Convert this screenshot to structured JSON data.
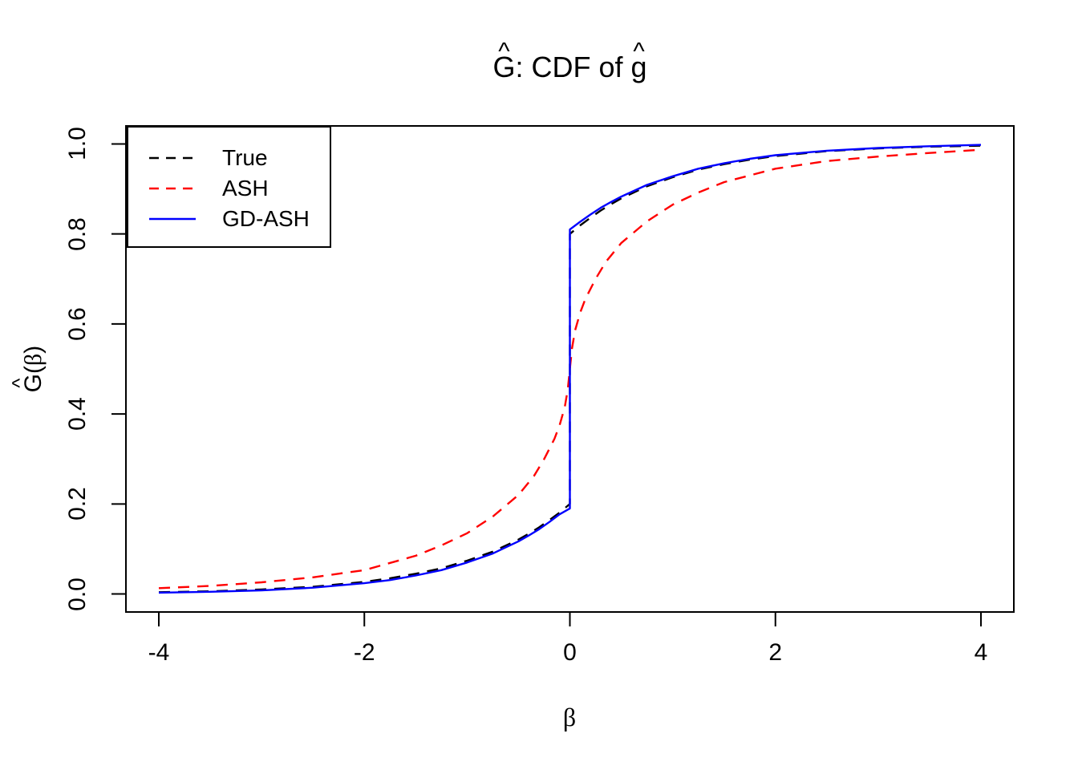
{
  "title": {
    "text": "Ĝ: CDF of ĝ",
    "hat": "^",
    "part_g_upper": "G",
    "part_middle": ": CDF of ",
    "part_g_lower": "g"
  },
  "axes": {
    "x_label": "β",
    "y_label_text": "Ĝ(β)",
    "y_label_letter": "G",
    "y_label_hat": "^",
    "y_label_open": "(",
    "y_label_beta": "β",
    "y_label_close": ")"
  },
  "legend": {
    "position": "topleft",
    "items": [
      {
        "label": "True",
        "color": "#000000",
        "style": "dashed"
      },
      {
        "label": "ASH",
        "color": "#ff0000",
        "style": "dashed"
      },
      {
        "label": "GD-ASH",
        "color": "#0000ff",
        "style": "solid"
      }
    ]
  },
  "chart_data": {
    "type": "line",
    "title": "Ĝ: CDF of ĝ",
    "xlabel": "β",
    "ylabel": "Ĝ(β)",
    "xlim": [
      -4,
      4
    ],
    "ylim": [
      0,
      1
    ],
    "grid": false,
    "legend_position": "topleft",
    "x_ticks": {
      "values": [
        -4,
        -2,
        0,
        2,
        4
      ],
      "labels": [
        "-4",
        "-2",
        "0",
        "2",
        "4"
      ]
    },
    "y_ticks": {
      "values": [
        0,
        0.2,
        0.4,
        0.6,
        0.8,
        1.0
      ],
      "labels": [
        "0.0",
        "0.2",
        "0.4",
        "0.6",
        "0.8",
        "1.0"
      ]
    },
    "series": [
      {
        "name": "True",
        "color": "#000000",
        "style": "dashed",
        "x": [
          -4,
          -3.5,
          -3,
          -2.5,
          -2,
          -1.75,
          -1.5,
          -1.25,
          -1,
          -0.75,
          -0.5,
          -0.4,
          -0.3,
          -0.2,
          -0.1,
          0,
          0,
          0.1,
          0.2,
          0.3,
          0.4,
          0.5,
          0.75,
          1,
          1.25,
          1.5,
          1.75,
          2,
          2.5,
          3,
          3.5,
          4
        ],
        "y": [
          0.004,
          0.006,
          0.01,
          0.016,
          0.027,
          0.035,
          0.045,
          0.057,
          0.074,
          0.094,
          0.121,
          0.134,
          0.148,
          0.164,
          0.181,
          0.2,
          0.8,
          0.819,
          0.836,
          0.852,
          0.866,
          0.879,
          0.906,
          0.926,
          0.943,
          0.955,
          0.965,
          0.973,
          0.984,
          0.99,
          0.994,
          0.996
        ]
      },
      {
        "name": "ASH",
        "color": "#ff0000",
        "style": "dashed",
        "x": [
          -4,
          -3.5,
          -3,
          -2.5,
          -2,
          -1.5,
          -1.25,
          -1,
          -0.75,
          -0.5,
          -0.35,
          -0.25,
          -0.15,
          -0.1,
          -0.05,
          -0.02,
          0,
          0.02,
          0.05,
          0.1,
          0.15,
          0.25,
          0.35,
          0.5,
          0.75,
          1,
          1.25,
          1.5,
          2,
          2.5,
          3,
          3.5,
          4
        ],
        "y": [
          0.013,
          0.018,
          0.026,
          0.037,
          0.053,
          0.085,
          0.108,
          0.135,
          0.172,
          0.22,
          0.262,
          0.3,
          0.345,
          0.375,
          0.415,
          0.455,
          0.5,
          0.545,
          0.585,
          0.625,
          0.655,
          0.7,
          0.738,
          0.78,
          0.828,
          0.865,
          0.892,
          0.915,
          0.945,
          0.962,
          0.972,
          0.98,
          0.987
        ]
      },
      {
        "name": "GD-ASH",
        "color": "#0000ff",
        "style": "solid",
        "x": [
          -4,
          -3.5,
          -3,
          -2.5,
          -2,
          -1.75,
          -1.5,
          -1.25,
          -1,
          -0.75,
          -0.5,
          -0.4,
          -0.3,
          -0.2,
          -0.1,
          0,
          0,
          0.1,
          0.2,
          0.3,
          0.4,
          0.5,
          0.75,
          1,
          1.25,
          1.5,
          1.75,
          2,
          2.5,
          3,
          3.5,
          4
        ],
        "y": [
          0.003,
          0.005,
          0.008,
          0.014,
          0.024,
          0.031,
          0.041,
          0.053,
          0.07,
          0.09,
          0.117,
          0.13,
          0.144,
          0.16,
          0.177,
          0.19,
          0.81,
          0.827,
          0.843,
          0.858,
          0.871,
          0.883,
          0.909,
          0.928,
          0.945,
          0.957,
          0.967,
          0.975,
          0.985,
          0.991,
          0.995,
          0.998
        ]
      }
    ]
  }
}
